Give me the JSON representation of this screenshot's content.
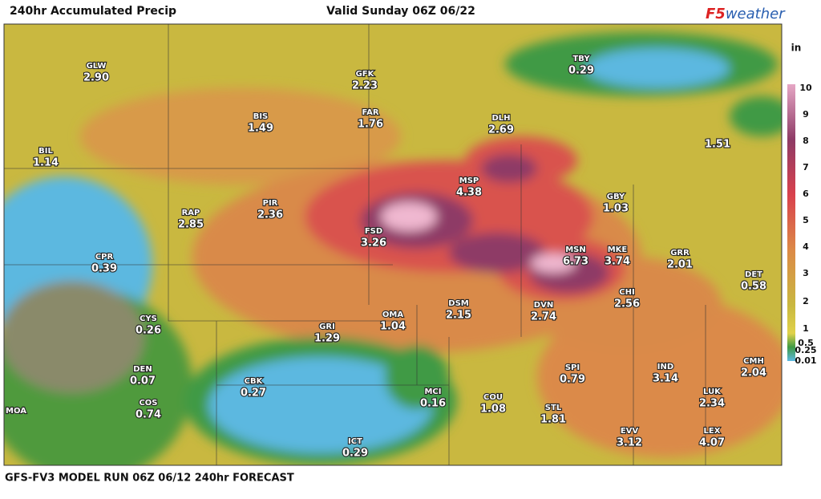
{
  "header": {
    "title": "240hr Accumulated Precip",
    "valid": "Valid Sunday 06Z 06/22",
    "logo": {
      "brand": "F5",
      "word": "weather"
    }
  },
  "footer": "GFS-FV3 MODEL RUN 06Z 06/12 240hr FORECAST",
  "legend": {
    "unit": "in",
    "ticks": [
      "10",
      "9",
      "8",
      "7",
      "6",
      "5",
      "4",
      "3",
      "2",
      "1",
      "0.5",
      "0.25",
      "0.01"
    ]
  },
  "stations": [
    {
      "code": "GLW",
      "value": "2.90"
    },
    {
      "code": "BIS",
      "value": "1.49"
    },
    {
      "code": "GFK",
      "value": "2.23"
    },
    {
      "code": "FAR",
      "value": "1.76"
    },
    {
      "code": "DLH",
      "value": "2.69"
    },
    {
      "code": "TBY",
      "value": "0.29"
    },
    {
      "code": "BIL",
      "value": "1.14"
    },
    {
      "value": "1.51"
    },
    {
      "code": "MSP",
      "value": "4.38"
    },
    {
      "code": "RAP",
      "value": "2.85"
    },
    {
      "code": "PIR",
      "value": "2.36"
    },
    {
      "code": "FSD",
      "value": "3.26"
    },
    {
      "code": "GBY",
      "value": "1.03"
    },
    {
      "code": "CPR",
      "value": "0.39"
    },
    {
      "code": "MSN",
      "value": "6.73"
    },
    {
      "code": "MKE",
      "value": "3.74"
    },
    {
      "code": "GRR",
      "value": "2.01"
    },
    {
      "code": "DET",
      "value": "0.58"
    },
    {
      "code": "DSM",
      "value": "2.15"
    },
    {
      "code": "DVN",
      "value": "2.74"
    },
    {
      "code": "CHI",
      "value": "2.56"
    },
    {
      "code": "CYS",
      "value": "0.26"
    },
    {
      "code": "OMA",
      "value": "1.04"
    },
    {
      "code": "GRI",
      "value": "1.29"
    },
    {
      "code": "DEN",
      "value": "0.07"
    },
    {
      "code": "SPI",
      "value": "0.79"
    },
    {
      "code": "IND",
      "value": "3.14"
    },
    {
      "code": "CMH",
      "value": "2.04"
    },
    {
      "code": "CBK",
      "value": "0.27"
    },
    {
      "code": "COS",
      "value": "0.74"
    },
    {
      "code": "MCI",
      "value": "0.16"
    },
    {
      "code": "COU",
      "value": "1.08"
    },
    {
      "code": "STL",
      "value": "1.81"
    },
    {
      "code": "LUK",
      "value": "2.34"
    },
    {
      "code": "MOA"
    },
    {
      "code": "EVV",
      "value": "3.12"
    },
    {
      "code": "LEX",
      "value": "4.07"
    },
    {
      "code": "ICT",
      "value": "0.29"
    }
  ]
}
